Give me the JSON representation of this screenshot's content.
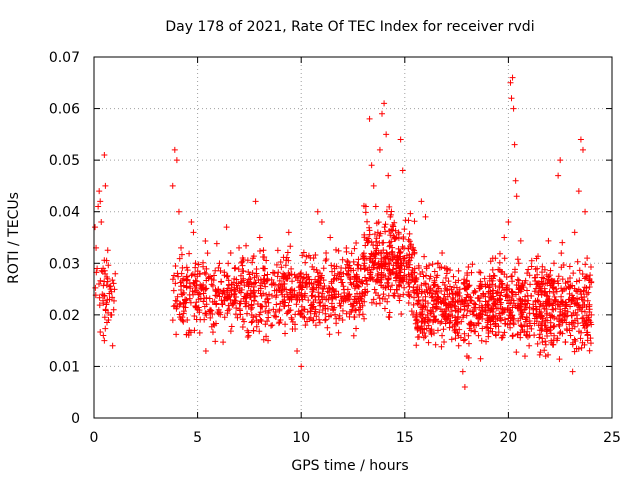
{
  "chart_data": {
    "type": "scatter",
    "title": "Day 178 of 2021, Rate Of TEC Index for receiver rvdi",
    "xlabel": "GPS time / hours",
    "ylabel": "ROTI / TECUs",
    "xlim": [
      0,
      25
    ],
    "ylim": [
      0,
      0.07
    ],
    "x_ticks": [
      0,
      5,
      10,
      15,
      20,
      25
    ],
    "x_tick_labels": [
      "0",
      "5",
      "10",
      "15",
      "20",
      "25"
    ],
    "y_ticks": [
      0,
      0.01,
      0.02,
      0.03,
      0.04,
      0.05,
      0.06,
      0.07
    ],
    "y_tick_labels": [
      "0",
      "0.01",
      "0.02",
      "0.03",
      "0.04",
      "0.05",
      "0.06",
      "0.07"
    ],
    "grid": true,
    "marker": "plus",
    "color": "#ff0000",
    "series": [
      {
        "name": "ROTI",
        "points": [
          [
            0.05,
            0.037
          ],
          [
            0.1,
            0.033
          ],
          [
            0.15,
            0.029
          ],
          [
            0.2,
            0.041
          ],
          [
            0.25,
            0.044
          ],
          [
            0.3,
            0.042
          ],
          [
            0.35,
            0.038
          ],
          [
            0.4,
            0.024
          ],
          [
            0.45,
            0.016
          ],
          [
            0.5,
            0.051
          ],
          [
            0.55,
            0.045
          ],
          [
            0.6,
            0.022
          ],
          [
            0.65,
            0.027
          ],
          [
            0.7,
            0.019
          ],
          [
            0.75,
            0.023
          ],
          [
            0.8,
            0.025
          ],
          [
            0.85,
            0.02
          ],
          [
            0.9,
            0.014
          ],
          [
            0.95,
            0.021
          ],
          [
            0.5,
            0.015
          ],
          [
            3.8,
            0.045
          ],
          [
            3.9,
            0.052
          ],
          [
            4.0,
            0.05
          ],
          [
            4.1,
            0.04
          ],
          [
            4.2,
            0.033
          ],
          [
            4.3,
            0.027
          ],
          [
            4.4,
            0.023
          ],
          [
            4.5,
            0.019
          ],
          [
            4.6,
            0.017
          ],
          [
            4.7,
            0.038
          ],
          [
            4.8,
            0.036
          ],
          [
            4.9,
            0.03
          ],
          [
            5.0,
            0.021
          ],
          [
            5.1,
            0.028
          ],
          [
            5.2,
            0.025
          ],
          [
            5.4,
            0.013
          ],
          [
            5.6,
            0.021
          ],
          [
            5.8,
            0.018
          ],
          [
            6.0,
            0.025
          ],
          [
            6.2,
            0.022
          ],
          [
            6.4,
            0.037
          ],
          [
            6.6,
            0.032
          ],
          [
            6.8,
            0.029
          ],
          [
            7.0,
            0.033
          ],
          [
            7.2,
            0.027
          ],
          [
            7.4,
            0.024
          ],
          [
            7.6,
            0.022
          ],
          [
            7.8,
            0.042
          ],
          [
            8.0,
            0.035
          ],
          [
            8.2,
            0.029
          ],
          [
            8.4,
            0.015
          ],
          [
            8.6,
            0.018
          ],
          [
            8.8,
            0.022
          ],
          [
            9.0,
            0.019
          ],
          [
            9.2,
            0.026
          ],
          [
            9.4,
            0.036
          ],
          [
            9.6,
            0.024
          ],
          [
            9.8,
            0.013
          ],
          [
            10.0,
            0.01
          ],
          [
            10.2,
            0.018
          ],
          [
            10.4,
            0.026
          ],
          [
            10.6,
            0.031
          ],
          [
            10.8,
            0.04
          ],
          [
            11.0,
            0.038
          ],
          [
            11.2,
            0.032
          ],
          [
            11.4,
            0.035
          ],
          [
            11.6,
            0.027
          ],
          [
            11.8,
            0.024
          ],
          [
            12.0,
            0.019
          ],
          [
            12.2,
            0.028
          ],
          [
            12.4,
            0.029
          ],
          [
            12.6,
            0.023
          ],
          [
            12.8,
            0.02
          ],
          [
            13.0,
            0.031
          ],
          [
            13.2,
            0.034
          ],
          [
            13.3,
            0.058
          ],
          [
            13.4,
            0.049
          ],
          [
            13.5,
            0.045
          ],
          [
            13.6,
            0.041
          ],
          [
            13.7,
            0.036
          ],
          [
            13.8,
            0.052
          ],
          [
            13.9,
            0.059
          ],
          [
            14.0,
            0.061
          ],
          [
            14.1,
            0.055
          ],
          [
            14.2,
            0.047
          ],
          [
            14.3,
            0.039
          ],
          [
            14.4,
            0.032
          ],
          [
            14.5,
            0.035
          ],
          [
            14.6,
            0.028
          ],
          [
            14.7,
            0.036
          ],
          [
            14.8,
            0.054
          ],
          [
            14.9,
            0.048
          ],
          [
            15.0,
            0.031
          ],
          [
            15.2,
            0.024
          ],
          [
            15.4,
            0.02
          ],
          [
            15.6,
            0.025
          ],
          [
            15.8,
            0.042
          ],
          [
            16.0,
            0.039
          ],
          [
            16.2,
            0.027
          ],
          [
            16.4,
            0.019
          ],
          [
            16.6,
            0.017
          ],
          [
            16.8,
            0.032
          ],
          [
            17.0,
            0.029
          ],
          [
            17.2,
            0.022
          ],
          [
            17.4,
            0.018
          ],
          [
            17.6,
            0.014
          ],
          [
            17.8,
            0.009
          ],
          [
            17.9,
            0.006
          ],
          [
            18.0,
            0.012
          ],
          [
            18.2,
            0.017
          ],
          [
            18.4,
            0.022
          ],
          [
            18.6,
            0.02
          ],
          [
            18.8,
            0.024
          ],
          [
            19.0,
            0.019
          ],
          [
            19.2,
            0.021
          ],
          [
            19.4,
            0.016
          ],
          [
            19.6,
            0.023
          ],
          [
            19.8,
            0.035
          ],
          [
            20.0,
            0.038
          ],
          [
            20.1,
            0.065
          ],
          [
            20.15,
            0.062
          ],
          [
            20.2,
            0.066
          ],
          [
            20.25,
            0.06
          ],
          [
            20.3,
            0.053
          ],
          [
            20.35,
            0.046
          ],
          [
            20.4,
            0.043
          ],
          [
            20.5,
            0.03
          ],
          [
            20.6,
            0.018
          ],
          [
            20.8,
            0.012
          ],
          [
            21.0,
            0.014
          ],
          [
            21.2,
            0.021
          ],
          [
            21.4,
            0.026
          ],
          [
            21.6,
            0.017
          ],
          [
            21.8,
            0.012
          ],
          [
            22.0,
            0.02
          ],
          [
            22.2,
            0.03
          ],
          [
            22.4,
            0.047
          ],
          [
            22.5,
            0.05
          ],
          [
            22.6,
            0.034
          ],
          [
            22.8,
            0.022
          ],
          [
            23.0,
            0.016
          ],
          [
            23.2,
            0.036
          ],
          [
            23.4,
            0.044
          ],
          [
            23.5,
            0.054
          ],
          [
            23.6,
            0.052
          ],
          [
            23.7,
            0.04
          ],
          [
            23.8,
            0.031
          ],
          [
            23.9,
            0.027
          ],
          [
            24.0,
            0.02
          ],
          [
            23.1,
            0.009
          ]
        ],
        "density_note": "dense band of points between ~0.01 and ~0.04 from 4h to 24h",
        "bands": [
          {
            "x_start": 0.0,
            "x_end": 1.05,
            "y_center": 0.025,
            "y_spread": 0.007,
            "count": 45
          },
          {
            "x_start": 3.8,
            "x_end": 9.0,
            "y_center": 0.024,
            "y_spread": 0.007,
            "count": 420
          },
          {
            "x_start": 9.0,
            "x_end": 13.0,
            "y_center": 0.025,
            "y_spread": 0.007,
            "count": 380
          },
          {
            "x_start": 13.0,
            "x_end": 15.5,
            "y_center": 0.03,
            "y_spread": 0.008,
            "count": 320
          },
          {
            "x_start": 15.5,
            "x_end": 20.0,
            "y_center": 0.022,
            "y_spread": 0.007,
            "count": 520
          },
          {
            "x_start": 20.0,
            "x_end": 24.0,
            "y_center": 0.022,
            "y_spread": 0.008,
            "count": 480
          }
        ]
      }
    ]
  }
}
